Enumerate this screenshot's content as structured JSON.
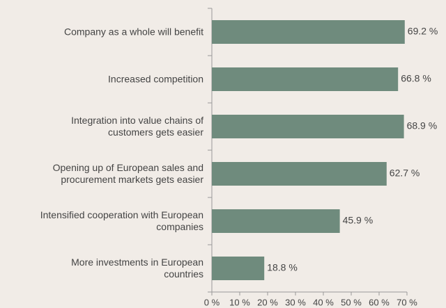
{
  "chart_data": {
    "type": "barh",
    "categories": [
      "Company as a whole will benefit",
      "Increased competition",
      "Integration into value chains of\ncustomers gets easier",
      "Opening up of European sales and\nprocurement markets gets easier",
      "Intensified cooperation with European\ncompanies",
      "More investments in European\ncountries"
    ],
    "values": [
      69.2,
      66.8,
      68.9,
      62.7,
      45.9,
      18.8
    ],
    "value_labels": [
      "69.2 %",
      "66.8 %",
      "68.9 %",
      "62.7 %",
      "45.9 %",
      "18.8 %"
    ],
    "color": "#6f8b7d",
    "xlim": [
      0,
      70
    ],
    "xticks": [
      {
        "value": 0,
        "label": "0 %"
      },
      {
        "value": 10,
        "label": "10 %"
      },
      {
        "value": 20,
        "label": "20 %"
      },
      {
        "value": 30,
        "label": "30 %"
      },
      {
        "value": 40,
        "label": "40 %"
      },
      {
        "value": 50,
        "label": "50 %"
      },
      {
        "value": 60,
        "label": "60 %"
      },
      {
        "value": 70,
        "label": "70 %"
      }
    ],
    "grid": false
  }
}
